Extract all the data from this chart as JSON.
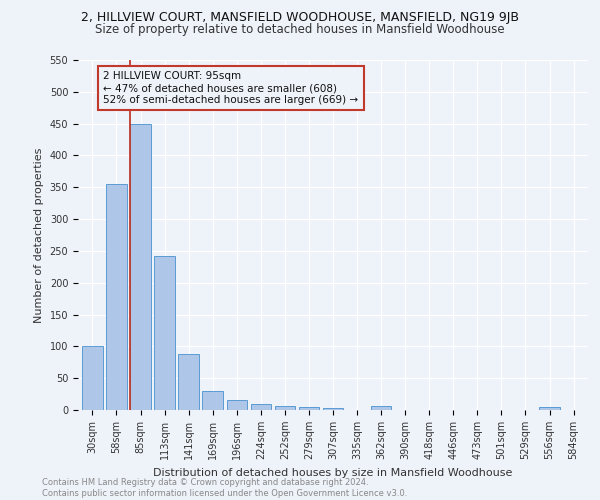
{
  "title_line1": "2, HILLVIEW COURT, MANSFIELD WOODHOUSE, MANSFIELD, NG19 9JB",
  "title_line2": "Size of property relative to detached houses in Mansfield Woodhouse",
  "xlabel": "Distribution of detached houses by size in Mansfield Woodhouse",
  "ylabel": "Number of detached properties",
  "footer_line1": "Contains HM Land Registry data © Crown copyright and database right 2024.",
  "footer_line2": "Contains public sector information licensed under the Open Government Licence v3.0.",
  "bar_labels": [
    "30sqm",
    "58sqm",
    "85sqm",
    "113sqm",
    "141sqm",
    "169sqm",
    "196sqm",
    "224sqm",
    "252sqm",
    "279sqm",
    "307sqm",
    "335sqm",
    "362sqm",
    "390sqm",
    "418sqm",
    "446sqm",
    "473sqm",
    "501sqm",
    "529sqm",
    "556sqm",
    "584sqm"
  ],
  "bar_values": [
    100,
    355,
    450,
    242,
    88,
    30,
    15,
    10,
    7,
    5,
    3,
    0,
    6,
    0,
    0,
    0,
    0,
    0,
    0,
    5,
    0
  ],
  "bar_color": "#aec6e8",
  "bar_edgecolor": "#5b9bd5",
  "ylim": [
    0,
    550
  ],
  "yticks": [
    0,
    50,
    100,
    150,
    200,
    250,
    300,
    350,
    400,
    450,
    500,
    550
  ],
  "vline_color": "#c0392b",
  "annotation_text_line1": "2 HILLVIEW COURT: 95sqm",
  "annotation_text_line2": "← 47% of detached houses are smaller (608)",
  "annotation_text_line3": "52% of semi-detached houses are larger (669) →",
  "annotation_box_edgecolor": "#c0392b",
  "background_color": "#eef2f9",
  "grid_color": "#ffffff",
  "title1_fontsize": 9,
  "title2_fontsize": 8.5,
  "axis_label_fontsize": 8,
  "tick_fontsize": 7,
  "annotation_fontsize": 7.5,
  "footer_fontsize": 6
}
